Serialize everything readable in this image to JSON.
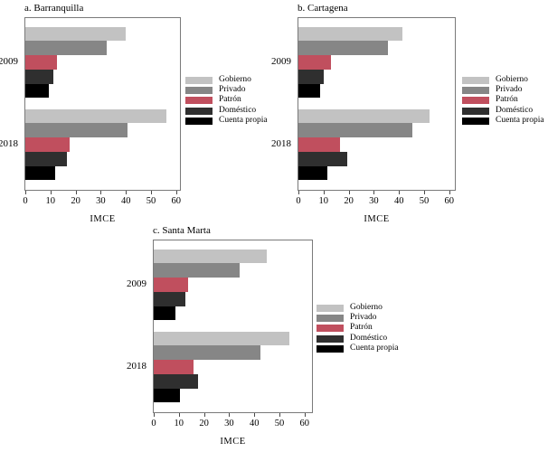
{
  "legend": {
    "labels": [
      "Gobierno",
      "Privado",
      "Patrón",
      "Doméstico",
      "Cuenta propia"
    ],
    "colors": [
      "#c2c2c2",
      "#868686",
      "#c04f5e",
      "#2f2f2f",
      "#000000"
    ]
  },
  "chart_data": [
    {
      "type": "bar",
      "orientation": "horizontal",
      "title": "a. Barranquilla",
      "categories": [
        "2009",
        "2018"
      ],
      "series": [
        {
          "name": "Gobierno",
          "values": [
            40,
            56
          ]
        },
        {
          "name": "Privado",
          "values": [
            32.5,
            40.5
          ]
        },
        {
          "name": "Patrón",
          "values": [
            12.5,
            17.5
          ]
        },
        {
          "name": "Doméstico",
          "values": [
            11,
            16.5
          ]
        },
        {
          "name": "Cuenta propia",
          "values": [
            9.5,
            12
          ]
        }
      ],
      "xlabel": "IMCE",
      "xlim": [
        0,
        62
      ],
      "x_ticks": [
        0,
        10,
        20,
        30,
        40,
        50,
        60
      ],
      "grid": false,
      "legend_position": "right"
    },
    {
      "type": "bar",
      "orientation": "horizontal",
      "title": "b. Cartagena",
      "categories": [
        "2009",
        "2018"
      ],
      "series": [
        {
          "name": "Gobierno",
          "values": [
            41.5,
            52
          ]
        },
        {
          "name": "Privado",
          "values": [
            35.5,
            45.5
          ]
        },
        {
          "name": "Patrón",
          "values": [
            13,
            16.5
          ]
        },
        {
          "name": "Doméstico",
          "values": [
            10,
            19.5
          ]
        },
        {
          "name": "Cuenta propia",
          "values": [
            8.5,
            11.5
          ]
        }
      ],
      "xlabel": "IMCE",
      "xlim": [
        0,
        62
      ],
      "x_ticks": [
        0,
        10,
        20,
        30,
        40,
        50,
        60
      ],
      "grid": false,
      "legend_position": "right"
    },
    {
      "type": "bar",
      "orientation": "horizontal",
      "title": "c. Santa Marta",
      "categories": [
        "2009",
        "2018"
      ],
      "series": [
        {
          "name": "Gobierno",
          "values": [
            45,
            54
          ]
        },
        {
          "name": "Privado",
          "values": [
            34,
            42.5
          ]
        },
        {
          "name": "Patrón",
          "values": [
            13.5,
            16
          ]
        },
        {
          "name": "Doméstico",
          "values": [
            12.5,
            17.5
          ]
        },
        {
          "name": "Cuenta propia",
          "values": [
            8.5,
            10.5
          ]
        }
      ],
      "xlabel": "IMCE",
      "xlim": [
        0,
        62
      ],
      "x_ticks": [
        0,
        10,
        20,
        30,
        40,
        50,
        60
      ],
      "grid": false,
      "legend_position": "right"
    }
  ]
}
